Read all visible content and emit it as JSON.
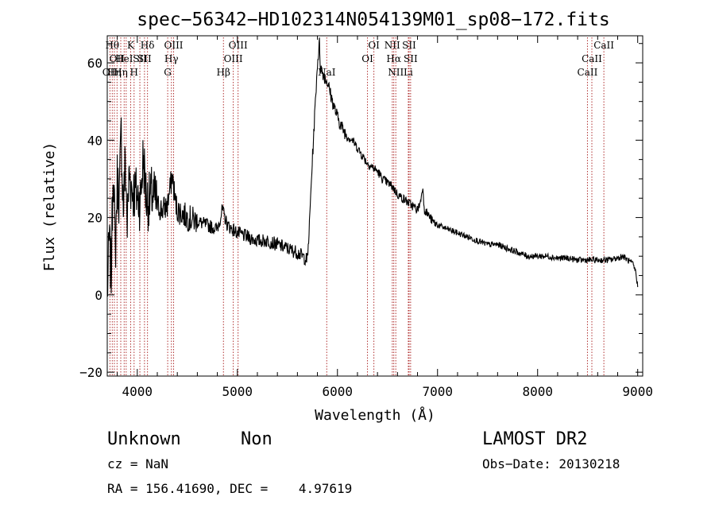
{
  "chart_data": {
    "type": "line",
    "title": "spec−56342−HD102314N054139M01_sp08−172.fits",
    "xlabel": "Wavelength (Å)",
    "ylabel": "Flux (relative)",
    "xlim": [
      3700,
      9050
    ],
    "ylim": [
      -21,
      67
    ],
    "xticks": [
      4000,
      5000,
      6000,
      7000,
      8000,
      9000
    ],
    "xtick_labels": [
      "4000",
      "5000",
      "6000",
      "7000",
      "8000",
      "9000"
    ],
    "yticks": [
      -20,
      0,
      20,
      40,
      60
    ],
    "ytick_labels": [
      "−20",
      "0",
      "20",
      "40",
      "60"
    ],
    "grid": false,
    "series": [
      {
        "x": [
          3700,
          3720,
          3740,
          3760,
          3780,
          3800,
          3820,
          3840,
          3860,
          3880,
          3900,
          3920,
          3940,
          3960,
          3980,
          4000,
          4030,
          4060,
          4090,
          4120,
          4150,
          4200,
          4250,
          4300,
          4350,
          4380,
          4400,
          4450,
          4500,
          4600,
          4700,
          4800,
          4850,
          4900,
          5000,
          5100,
          5200,
          5300,
          5400,
          5500,
          5600,
          5650,
          5700,
          5720,
          5740,
          5760,
          5780,
          5800,
          5820,
          5830,
          5860,
          5900,
          5950,
          6000,
          6050,
          6100,
          6150,
          6200,
          6250,
          6300,
          6350,
          6400,
          6450,
          6500,
          6550,
          6600,
          6650,
          6700,
          6750,
          6800,
          6830,
          6850,
          6870,
          6900,
          6950,
          7000,
          7100,
          7200,
          7300,
          7400,
          7500,
          7600,
          7700,
          7800,
          7900,
          8000,
          8100,
          8200,
          8300,
          8400,
          8500,
          8600,
          8700,
          8800,
          8850,
          8900,
          8950,
          8980,
          9000
        ],
        "y": [
          0,
          14,
          5,
          36,
          10,
          30,
          25,
          42,
          22,
          35,
          18,
          32,
          28,
          27,
          26,
          26,
          24,
          36,
          25,
          24,
          26,
          23,
          22,
          23,
          31,
          24,
          22,
          21,
          20,
          19,
          18,
          17,
          22,
          18,
          16,
          15,
          14,
          14,
          13,
          12,
          11,
          10,
          9,
          18,
          30,
          40,
          50,
          60,
          65,
          59,
          57,
          55,
          50,
          46,
          43,
          41,
          40,
          38,
          36,
          34,
          33,
          32,
          30,
          29,
          28,
          26,
          25,
          24,
          23,
          22,
          24,
          28,
          22,
          21,
          19,
          18,
          17,
          16,
          15,
          14,
          13,
          13,
          12,
          11,
          10,
          10,
          10,
          9.5,
          9.5,
          9,
          9,
          9,
          9,
          9.5,
          10,
          9,
          8,
          6,
          2
        ]
      }
    ],
    "lines": [
      {
        "x": 3727,
        "label": "OII",
        "row": 2
      },
      {
        "x": 3750,
        "label": "Hθ",
        "row": 0
      },
      {
        "x": 3771,
        "label": "Hη",
        "row": 2
      },
      {
        "x": 3798,
        "label": "OII",
        "row": 1
      },
      {
        "x": 3835,
        "label": "Hη",
        "row": 2
      },
      {
        "x": 3869,
        "label": "HeI",
        "row": 1
      },
      {
        "x": 3889,
        "label": "",
        "row": 0
      },
      {
        "x": 3934,
        "label": "K",
        "row": 0
      },
      {
        "x": 3968,
        "label": "H",
        "row": 2
      },
      {
        "x": 4026,
        "label": "SII",
        "row": 1
      },
      {
        "x": 4072,
        "label": "SII",
        "row": 1
      },
      {
        "x": 4102,
        "label": "Hδ",
        "row": 0
      },
      {
        "x": 4304,
        "label": "G",
        "row": 2
      },
      {
        "x": 4341,
        "label": "Hγ",
        "row": 1
      },
      {
        "x": 4363,
        "label": "OIII",
        "row": 0
      },
      {
        "x": 4861,
        "label": "Hβ",
        "row": 2
      },
      {
        "x": 4959,
        "label": "OIII",
        "row": 1
      },
      {
        "x": 5007,
        "label": "OIII",
        "row": 0
      },
      {
        "x": 5893,
        "label": "NaI",
        "row": 2
      },
      {
        "x": 6300,
        "label": "OI",
        "row": 1
      },
      {
        "x": 6364,
        "label": "OI",
        "row": 0
      },
      {
        "x": 6548,
        "label": "NII",
        "row": 0
      },
      {
        "x": 6563,
        "label": "Hα",
        "row": 1
      },
      {
        "x": 6583,
        "label": "NII",
        "row": 2
      },
      {
        "x": 6708,
        "label": "Li",
        "row": 2
      },
      {
        "x": 6716,
        "label": "SII",
        "row": 0
      },
      {
        "x": 6731,
        "label": "SII",
        "row": 1
      },
      {
        "x": 8498,
        "label": "CaII",
        "row": 2
      },
      {
        "x": 8542,
        "label": "CaII",
        "row": 1
      },
      {
        "x": 8662,
        "label": "CaII",
        "row": 0
      }
    ]
  },
  "footer": {
    "class_label": "Unknown",
    "subclass_label": "Non",
    "survey": "LAMOST DR2",
    "cz": "cz = NaN",
    "obs_date": "Obs−Date: 20130218",
    "radec": "RA = 156.41690, DEC =    4.97619"
  }
}
